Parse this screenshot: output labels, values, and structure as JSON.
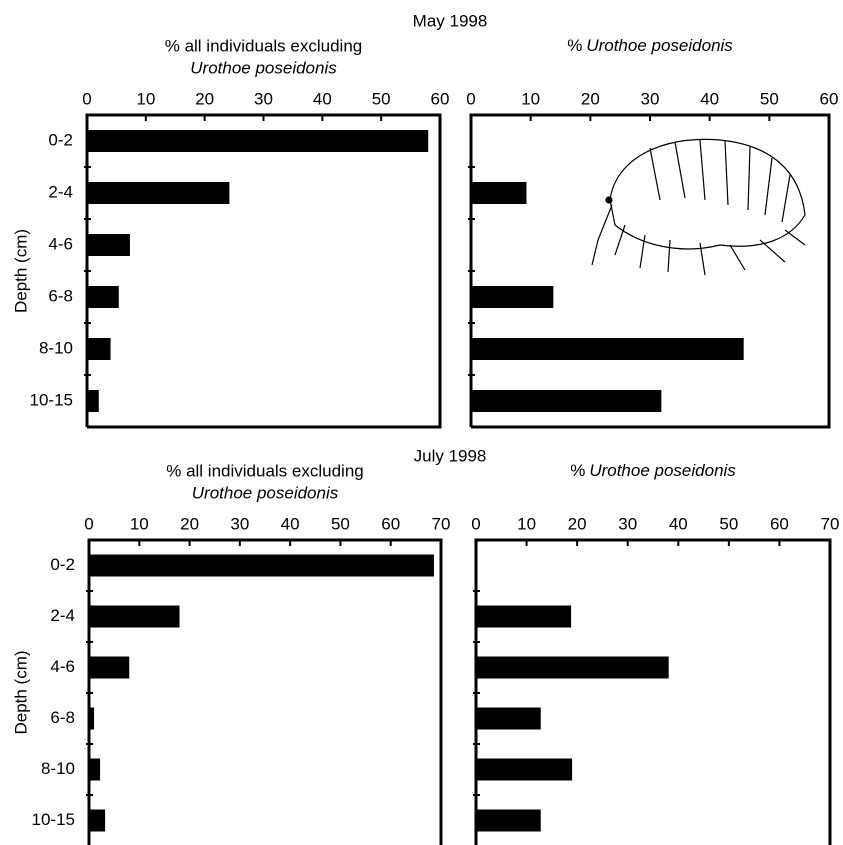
{
  "chart_data": [
    {
      "title": "May 1998",
      "panels": [
        {
          "type": "bar",
          "xlabel": [
            "% all individuals excluding",
            "Urothoe poseidonis"
          ],
          "ylabel": "Depth (cm)",
          "categories": [
            "0-2",
            "2-4",
            "4-6",
            "6-8",
            "8-10",
            "10-15"
          ],
          "values": [
            58,
            24.2,
            7.3,
            5.4,
            4,
            2
          ],
          "color": "#000000",
          "xlim": [
            0,
            60
          ],
          "xticks": [
            0,
            10,
            20,
            30,
            40,
            50,
            60
          ]
        },
        {
          "type": "bar",
          "xlabel": [
            "%",
            "Urothoe poseidonis"
          ],
          "values": [
            0,
            9.3,
            0,
            13.8,
            45.7,
            31.9
          ],
          "color": "#000000",
          "xlim": [
            0,
            60
          ],
          "xticks": [
            0,
            10,
            20,
            30,
            40,
            50,
            60
          ]
        }
      ]
    },
    {
      "title": "July 1998",
      "panels": [
        {
          "type": "bar",
          "xlabel": [
            "% all individuals excluding",
            "Urothoe poseidonis"
          ],
          "ylabel": "Depth (cm)",
          "categories": [
            "0-2",
            "2-4",
            "4-6",
            "6-8",
            "8-10",
            "10-15"
          ],
          "values": [
            68.6,
            18,
            8,
            1,
            2.2,
            3.2
          ],
          "color": "#000000",
          "xlim": [
            0,
            70
          ],
          "xticks": [
            0,
            10,
            20,
            30,
            40,
            50,
            60,
            70
          ]
        },
        {
          "type": "bar",
          "xlabel": [
            "%",
            "Urothoe poseidonis"
          ],
          "values": [
            0,
            18.8,
            38.1,
            12.8,
            19,
            12.8
          ],
          "color": "#000000",
          "xlim": [
            0,
            70
          ],
          "xticks": [
            0,
            10,
            20,
            30,
            40,
            50,
            60,
            70
          ]
        }
      ]
    }
  ]
}
